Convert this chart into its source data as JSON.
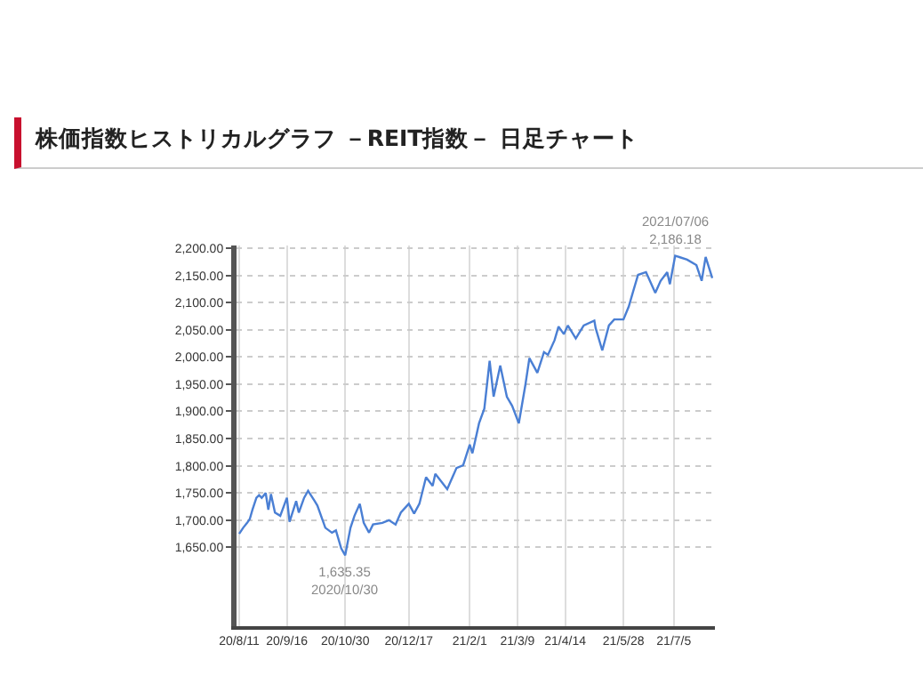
{
  "chart_data": {
    "type": "line",
    "title": "株価指数ヒストリカルグラフ －REIT指数－ 日足チャート",
    "x": [
      "2020-08-11",
      "2020-08-14",
      "2020-08-17",
      "2020-08-19",
      "2020-08-21",
      "2020-08-24",
      "2020-08-26",
      "2020-08-28",
      "2020-08-31",
      "2020-09-02",
      "2020-09-04",
      "2020-09-07",
      "2020-09-11",
      "2020-09-16",
      "2020-09-18",
      "2020-09-23",
      "2020-09-25",
      "2020-09-29",
      "2020-10-02",
      "2020-10-07",
      "2020-10-09",
      "2020-10-15",
      "2020-10-20",
      "2020-10-23",
      "2020-10-27",
      "2020-10-30",
      "2020-11-03",
      "2020-11-06",
      "2020-11-10",
      "2020-11-13",
      "2020-11-17",
      "2020-11-20",
      "2020-11-27",
      "2020-12-02",
      "2020-12-07",
      "2020-12-11",
      "2020-12-17",
      "2020-12-21",
      "2020-12-25",
      "2020-12-30",
      "2021-01-04",
      "2021-01-06",
      "2021-01-08",
      "2021-01-15",
      "2021-01-22",
      "2021-01-27",
      "2021-02-01",
      "2021-02-03",
      "2021-02-08",
      "2021-02-12",
      "2021-02-16",
      "2021-02-19",
      "2021-02-24",
      "2021-03-01",
      "2021-03-05",
      "2021-03-10",
      "2021-03-15",
      "2021-03-18",
      "2021-03-24",
      "2021-03-29",
      "2021-04-01",
      "2021-04-06",
      "2021-04-09",
      "2021-04-13",
      "2021-04-16",
      "2021-04-22",
      "2021-04-28",
      "2021-05-06",
      "2021-05-07",
      "2021-05-12",
      "2021-05-17",
      "2021-05-21",
      "2021-05-28",
      "2021-06-01",
      "2021-06-04",
      "2021-06-08",
      "2021-06-14",
      "2021-06-21",
      "2021-06-25",
      "2021-06-30",
      "2021-07-02",
      "2021-07-06",
      "2021-07-15",
      "2021-07-22",
      "2021-07-26",
      "2021-07-29",
      "2021-08-03"
    ],
    "series": [
      {
        "color": "#4a7fd4",
        "values": [
          1675,
          1686,
          1695,
          1702,
          1719,
          1741,
          1746,
          1741,
          1750,
          1719,
          1748,
          1714,
          1708,
          1741,
          1697,
          1735,
          1714,
          1741,
          1754,
          1735,
          1727,
          1686,
          1677,
          1681,
          1648,
          1635.35,
          1686,
          1708,
          1730,
          1695,
          1677,
          1692,
          1695,
          1700,
          1692,
          1714,
          1730,
          1712,
          1730,
          1779,
          1763,
          1785,
          1779,
          1757,
          1796,
          1801,
          1839,
          1823,
          1878,
          1905,
          1993,
          1927,
          1984,
          1927,
          1910,
          1878,
          1949,
          1998,
          1971,
          2009,
          2004,
          2031,
          2056,
          2042,
          2058,
          2034,
          2058,
          2067,
          2053,
          2012,
          2058,
          2069,
          2069,
          2093,
          2118,
          2151,
          2156,
          2118,
          2140,
          2156,
          2134,
          2186.18,
          2179,
          2169,
          2140,
          2184,
          2145
        ]
      }
    ],
    "xlim": [
      "2020-08-09",
      "2021-08-05"
    ],
    "xticks": [
      {
        "value": "2020-08-11",
        "label": "20/8/11"
      },
      {
        "value": "2020-09-16",
        "label": "20/9/16"
      },
      {
        "value": "2020-10-30",
        "label": "20/10/30"
      },
      {
        "value": "2020-12-17",
        "label": "20/12/17"
      },
      {
        "value": "2021-02-01",
        "label": "21/2/1"
      },
      {
        "value": "2021-03-09",
        "label": "21/3/9"
      },
      {
        "value": "2021-04-14",
        "label": "21/4/14"
      },
      {
        "value": "2021-05-28",
        "label": "21/5/28"
      },
      {
        "value": "2021-07-05",
        "label": "21/7/5"
      }
    ],
    "ylim": [
      1505,
      2205
    ],
    "yticks": [
      {
        "value": 1650,
        "label": "1,650.00"
      },
      {
        "value": 1700,
        "label": "1,700.00"
      },
      {
        "value": 1750,
        "label": "1,750.00"
      },
      {
        "value": 1800,
        "label": "1,800.00"
      },
      {
        "value": 1850,
        "label": "1,850.00"
      },
      {
        "value": 1900,
        "label": "1,900.00"
      },
      {
        "value": 1950,
        "label": "1,950.00"
      },
      {
        "value": 2000,
        "label": "2,000.00"
      },
      {
        "value": 2050,
        "label": "2,050.00"
      },
      {
        "value": 2100,
        "label": "2,100.00"
      },
      {
        "value": 2150,
        "label": "2,150.00"
      },
      {
        "value": 2200,
        "label": "2,200.00"
      }
    ],
    "grid": true,
    "annotations": [
      {
        "text": "2021/07/06\n2,186.18",
        "x": "2021-07-06",
        "y": 2186.18
      },
      {
        "text": "1,635.35\n2020/10/30",
        "x": "2020-10-30",
        "y": 1635.35
      }
    ]
  }
}
